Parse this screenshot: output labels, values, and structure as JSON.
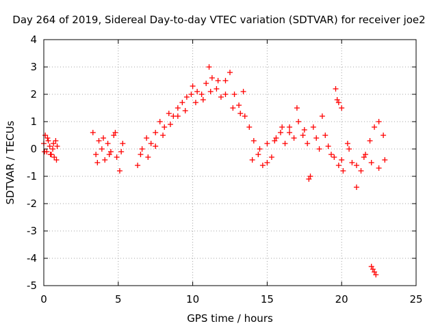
{
  "chart_data": {
    "type": "scatter",
    "title": "Day 264 of 2019, Sidereal Day-to-day VTEC variation (SDTVAR) for receiver joe2",
    "xlabel": "GPS time / hours",
    "ylabel": "SDTVAR / TECUs",
    "xlim": [
      0,
      25
    ],
    "ylim": [
      -5,
      4
    ],
    "xticks": [
      0,
      5,
      10,
      15,
      20,
      25
    ],
    "yticks": [
      -5,
      -4,
      -3,
      -2,
      -1,
      0,
      1,
      2,
      3,
      4
    ],
    "grid": true,
    "marker": "plus",
    "color": "#ff0000",
    "series": [
      {
        "name": "SDTVAR",
        "x": [
          0.0,
          0.1,
          0.2,
          0.3,
          0.4,
          0.5,
          0.6,
          0.7,
          0.8,
          0.9,
          0.05,
          0.25,
          0.45,
          0.65,
          0.85,
          3.3,
          3.5,
          3.7,
          3.9,
          4.1,
          4.3,
          4.5,
          4.7,
          4.9,
          5.1,
          5.3,
          3.6,
          4.0,
          4.4,
          4.8,
          5.2,
          6.3,
          6.6,
          6.9,
          7.2,
          7.5,
          7.8,
          8.1,
          8.4,
          8.7,
          9.0,
          9.3,
          9.6,
          9.9,
          6.5,
          7.0,
          7.5,
          8.0,
          8.5,
          9.0,
          9.5,
          10.0,
          10.3,
          10.6,
          10.9,
          11.1,
          11.3,
          11.6,
          11.9,
          12.2,
          12.5,
          12.8,
          13.1,
          13.4,
          10.2,
          10.7,
          11.2,
          11.7,
          12.2,
          12.7,
          13.2,
          13.5,
          13.8,
          14.1,
          14.4,
          14.7,
          15.0,
          15.3,
          15.6,
          15.9,
          16.2,
          16.5,
          16.8,
          17.1,
          17.4,
          17.7,
          14.0,
          14.5,
          15.0,
          15.5,
          16.0,
          16.5,
          17.0,
          17.5,
          17.8,
          17.9,
          18.1,
          18.3,
          18.5,
          18.7,
          18.9,
          19.1,
          19.3,
          19.6,
          19.7,
          19.8,
          20.0,
          19.5,
          19.8,
          20.1,
          20.4,
          20.7,
          21.0,
          21.3,
          21.6,
          21.9,
          22.2,
          22.5,
          22.8,
          20.0,
          20.5,
          21.0,
          21.5,
          22.0,
          22.5,
          22.9,
          22.0,
          22.1,
          22.2,
          22.3
        ],
        "y": [
          0.2,
          0.5,
          -0.1,
          0.3,
          0.1,
          -0.2,
          0.0,
          -0.3,
          0.3,
          0.1,
          -0.1,
          0.4,
          -0.2,
          0.2,
          -0.4,
          0.6,
          -0.2,
          0.3,
          0.0,
          -0.4,
          0.2,
          -0.1,
          0.5,
          -0.3,
          -0.8,
          0.2,
          -0.5,
          0.4,
          -0.2,
          0.6,
          -0.1,
          -0.6,
          0.0,
          0.4,
          0.2,
          0.6,
          1.0,
          0.8,
          1.3,
          1.2,
          1.5,
          1.7,
          1.9,
          2.0,
          -0.2,
          -0.3,
          0.1,
          0.5,
          0.9,
          1.2,
          1.4,
          2.3,
          2.1,
          2.0,
          2.4,
          3.0,
          2.6,
          2.2,
          1.9,
          2.5,
          2.8,
          2.0,
          1.6,
          2.1,
          1.7,
          1.8,
          2.1,
          2.5,
          2.0,
          1.5,
          1.3,
          1.2,
          0.8,
          0.3,
          -0.2,
          -0.6,
          0.2,
          -0.3,
          0.4,
          0.6,
          0.2,
          0.8,
          0.4,
          1.0,
          0.5,
          0.2,
          -0.4,
          0.0,
          -0.5,
          0.3,
          0.8,
          0.6,
          1.5,
          0.7,
          -1.1,
          -1.0,
          0.8,
          0.4,
          0.0,
          1.2,
          0.5,
          0.1,
          -0.2,
          2.2,
          1.8,
          1.7,
          1.5,
          -0.3,
          -0.6,
          -0.8,
          0.2,
          -0.5,
          -1.4,
          -0.8,
          -0.2,
          0.3,
          0.8,
          1.0,
          0.5,
          -0.4,
          0.0,
          -0.6,
          -0.3,
          -0.5,
          -0.7,
          -0.4,
          -4.3,
          -4.4,
          -4.5,
          -4.6
        ]
      }
    ]
  }
}
